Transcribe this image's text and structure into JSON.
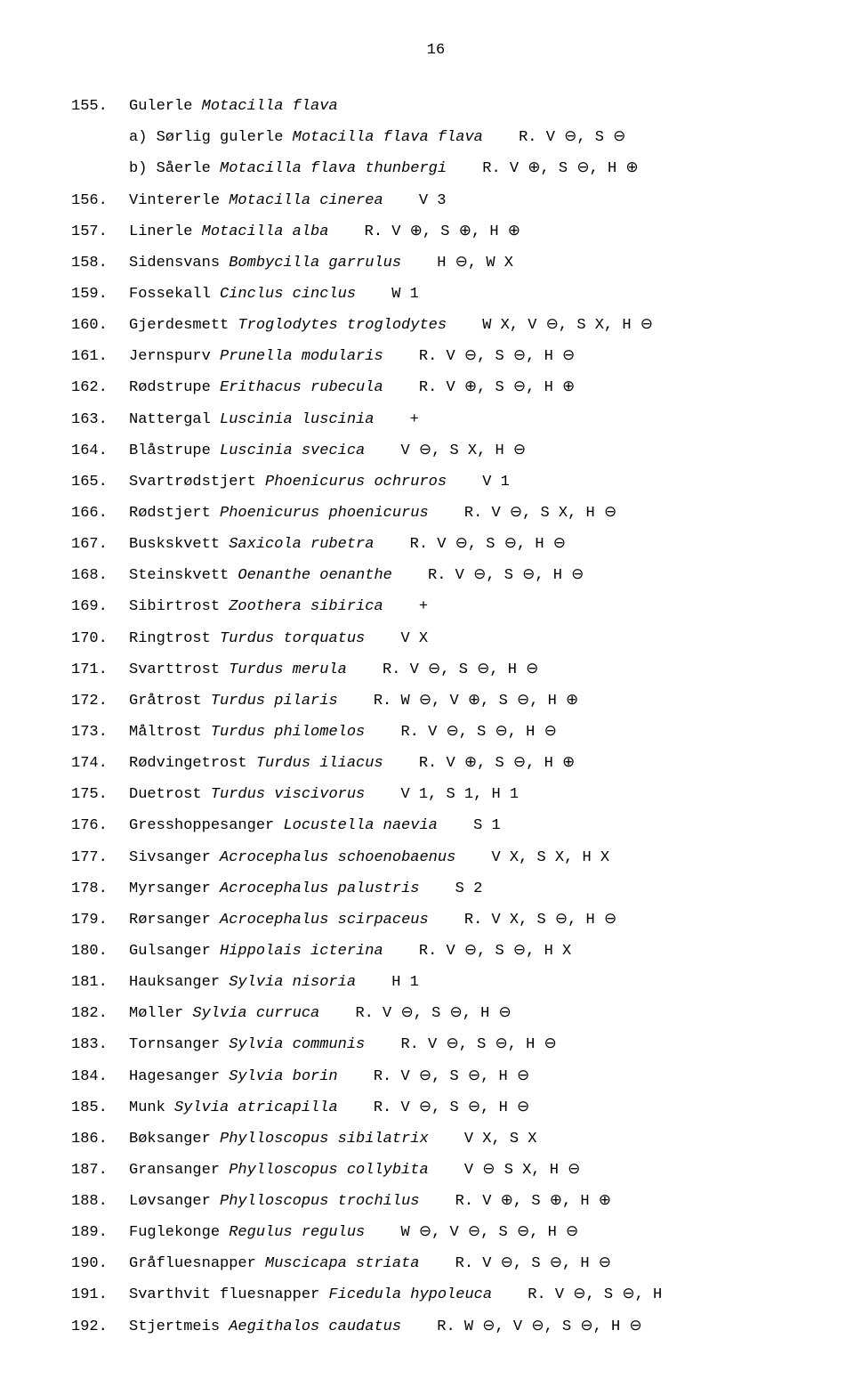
{
  "page_number": "16",
  "entries": [
    {
      "num": "155.",
      "common": "Gulerle ",
      "latin": "Motacilla flava",
      "notes": "",
      "subs": [
        {
          "prefix": "a) Sørlig gulerle ",
          "latin": "Motacilla flava flava",
          "notes": "   R. V ⊖, S ⊖"
        },
        {
          "prefix": "b) Såerle ",
          "latin": "Motacilla flava thunbergi",
          "notes": "   R. V ⊕, S ⊖, H ⊕"
        }
      ]
    },
    {
      "num": "156.",
      "common": "Vintererle ",
      "latin": "Motacilla cinerea",
      "notes": "   V 3"
    },
    {
      "num": "157.",
      "common": "Linerle ",
      "latin": "Motacilla alba",
      "notes": "   R. V ⊕, S ⊕, H ⊕"
    },
    {
      "num": "158.",
      "common": "Sidensvans ",
      "latin": "Bombycilla garrulus",
      "notes": "   H ⊖, W X"
    },
    {
      "num": "159.",
      "common": "Fossekall ",
      "latin": "Cinclus cinclus",
      "notes": "   W 1"
    },
    {
      "num": "160.",
      "common": "Gjerdesmett ",
      "latin": "Troglodytes troglodytes",
      "notes": "   W X, V ⊖, S X, H ⊖"
    },
    {
      "num": "161.",
      "common": "Jernspurv ",
      "latin": "Prunella modularis",
      "notes": "   R. V ⊖, S ⊖, H ⊖"
    },
    {
      "num": "162.",
      "common": "Rødstrupe ",
      "latin": "Erithacus rubecula",
      "notes": " R. V ⊕, S ⊖, H ⊕"
    },
    {
      "num": "163.",
      "common": "Nattergal ",
      "latin": "Luscinia luscinia",
      "notes": "   +"
    },
    {
      "num": "164.",
      "common": "Blåstrupe ",
      "latin": "Luscinia svecica",
      "notes": "   V ⊖, S X, H ⊖"
    },
    {
      "num": "165.",
      "common": "Svartrødstjert ",
      "latin": "Phoenicurus ochruros",
      "notes": "   V 1"
    },
    {
      "num": "166.",
      "common": "Rødstjert ",
      "latin": "Phoenicurus phoenicurus",
      "notes": "   R. V ⊖, S X, H ⊖"
    },
    {
      "num": "167.",
      "common": "Buskskvett ",
      "latin": "Saxicola rubetra",
      "notes": "   R. V ⊖, S ⊖, H ⊖"
    },
    {
      "num": "168.",
      "common": "Steinskvett ",
      "latin": "Oenanthe oenanthe",
      "notes": "   R. V ⊖, S ⊖, H ⊖"
    },
    {
      "num": "169.",
      "common": "Sibirtrost ",
      "latin": "Zoothera sibirica",
      "notes": "   +"
    },
    {
      "num": "170.",
      "common": "Ringtrost ",
      "latin": "Turdus torquatus",
      "notes": "   V X"
    },
    {
      "num": "171.",
      "common": "Svarttrost ",
      "latin": "Turdus merula",
      "notes": "   R. V ⊖, S ⊖, H ⊖"
    },
    {
      "num": "172.",
      "common": "Gråtrost ",
      "latin": "Turdus pilaris",
      "notes": "   R. W ⊖, V ⊕, S ⊖, H ⊕"
    },
    {
      "num": "173.",
      "common": "Måltrost ",
      "latin": "Turdus philomelos",
      "notes": "   R. V ⊖, S ⊖, H ⊖"
    },
    {
      "num": "174.",
      "common": "Rødvingetrost ",
      "latin": "Turdus iliacus",
      "notes": "   R. V ⊕, S ⊖, H ⊕"
    },
    {
      "num": "175.",
      "common": "Duetrost ",
      "latin": "Turdus viscivorus",
      "notes": "   V 1, S 1, H 1"
    },
    {
      "num": "176.",
      "common": "Gresshoppesanger ",
      "latin": "Locustella naevia",
      "notes": "   S 1"
    },
    {
      "num": "177.",
      "common": "Sivsanger ",
      "latin": "Acrocephalus schoenobaenus",
      "notes": "   V X, S X, H X"
    },
    {
      "num": "178.",
      "common": "Myrsanger ",
      "latin": "Acrocephalus palustris",
      "notes": "   S 2"
    },
    {
      "num": "179.",
      "common": "Rørsanger ",
      "latin": "Acrocephalus scirpaceus",
      "notes": "   R. V X, S ⊖, H ⊖"
    },
    {
      "num": "180.",
      "common": "Gulsanger ",
      "latin": "Hippolais icterina",
      "notes": "   R. V ⊖, S ⊖, H X"
    },
    {
      "num": "181.",
      "common": "Hauksanger ",
      "latin": "Sylvia nisoria",
      "notes": "   H 1"
    },
    {
      "num": "182.",
      "common": "Møller ",
      "latin": "Sylvia curruca",
      "notes": "   R. V ⊖, S ⊖, H ⊖"
    },
    {
      "num": "183.",
      "common": "Tornsanger ",
      "latin": "Sylvia communis",
      "notes": "   R. V ⊖, S ⊖, H ⊖"
    },
    {
      "num": "184.",
      "common": "Hagesanger ",
      "latin": "Sylvia borin",
      "notes": "   R. V ⊖, S ⊖, H ⊖"
    },
    {
      "num": "185.",
      "common": "Munk ",
      "latin": "Sylvia atricapilla",
      "notes": "   R. V ⊖, S ⊖, H ⊖"
    },
    {
      "num": "186.",
      "common": "Bøksanger ",
      "latin": "Phylloscopus sibilatrix",
      "notes": "   V X, S X"
    },
    {
      "num": "187.",
      "common": "Gransanger ",
      "latin": "Phylloscopus collybita",
      "notes": "   V ⊖ S X, H ⊖"
    },
    {
      "num": "188.",
      "common": "Løvsanger ",
      "latin": "Phylloscopus trochilus",
      "notes": "   R. V ⊕, S ⊕, H ⊕"
    },
    {
      "num": "189.",
      "common": "Fuglekonge ",
      "latin": "Regulus regulus",
      "notes": "   W ⊖, V ⊖, S ⊖, H ⊖"
    },
    {
      "num": "190.",
      "common": "Gråfluesnapper ",
      "latin": "Muscicapa striata",
      "notes": "   R. V ⊖, S ⊖, H ⊖"
    },
    {
      "num": "191.",
      "common": "Svarthvit fluesnapper ",
      "latin": "Ficedula hypoleuca",
      "notes": "   R. V ⊖, S ⊖, H"
    },
    {
      "num": "192.",
      "common": "Stjertmeis ",
      "latin": "Aegithalos caudatus",
      "notes": "   R. W ⊖, V ⊖, S ⊖, H ⊖"
    }
  ]
}
